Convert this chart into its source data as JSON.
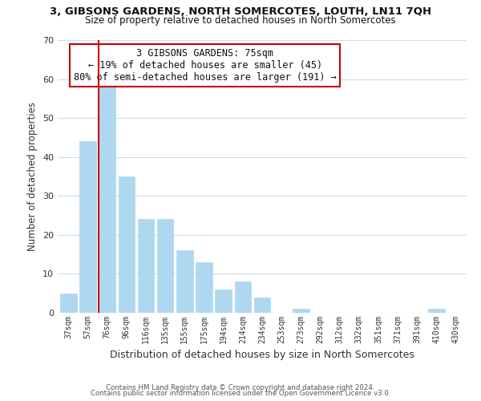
{
  "title": "3, GIBSONS GARDENS, NORTH SOMERCOTES, LOUTH, LN11 7QH",
  "subtitle": "Size of property relative to detached houses in North Somercotes",
  "xlabel": "Distribution of detached houses by size in North Somercotes",
  "ylabel": "Number of detached properties",
  "footer_line1": "Contains HM Land Registry data © Crown copyright and database right 2024.",
  "footer_line2": "Contains public sector information licensed under the Open Government Licence v3.0.",
  "annotation_line1": "3 GIBSONS GARDENS: 75sqm",
  "annotation_line2": "← 19% of detached houses are smaller (45)",
  "annotation_line3": "80% of semi-detached houses are larger (191) →",
  "bar_color": "#add8f0",
  "highlight_color": "#cc0000",
  "categories": [
    "37sqm",
    "57sqm",
    "76sqm",
    "96sqm",
    "116sqm",
    "135sqm",
    "155sqm",
    "175sqm",
    "194sqm",
    "214sqm",
    "234sqm",
    "253sqm",
    "273sqm",
    "292sqm",
    "312sqm",
    "332sqm",
    "351sqm",
    "371sqm",
    "391sqm",
    "410sqm",
    "430sqm"
  ],
  "values": [
    5,
    44,
    58,
    35,
    24,
    24,
    16,
    13,
    6,
    8,
    4,
    0,
    1,
    0,
    0,
    0,
    0,
    0,
    0,
    1,
    0
  ],
  "highlight_index": 2,
  "ylim": [
    0,
    70
  ],
  "yticks": [
    0,
    10,
    20,
    30,
    40,
    50,
    60,
    70
  ],
  "figsize": [
    6.0,
    5.0
  ],
  "dpi": 100,
  "background_color": "#ffffff",
  "grid_color": "#c8dff0"
}
